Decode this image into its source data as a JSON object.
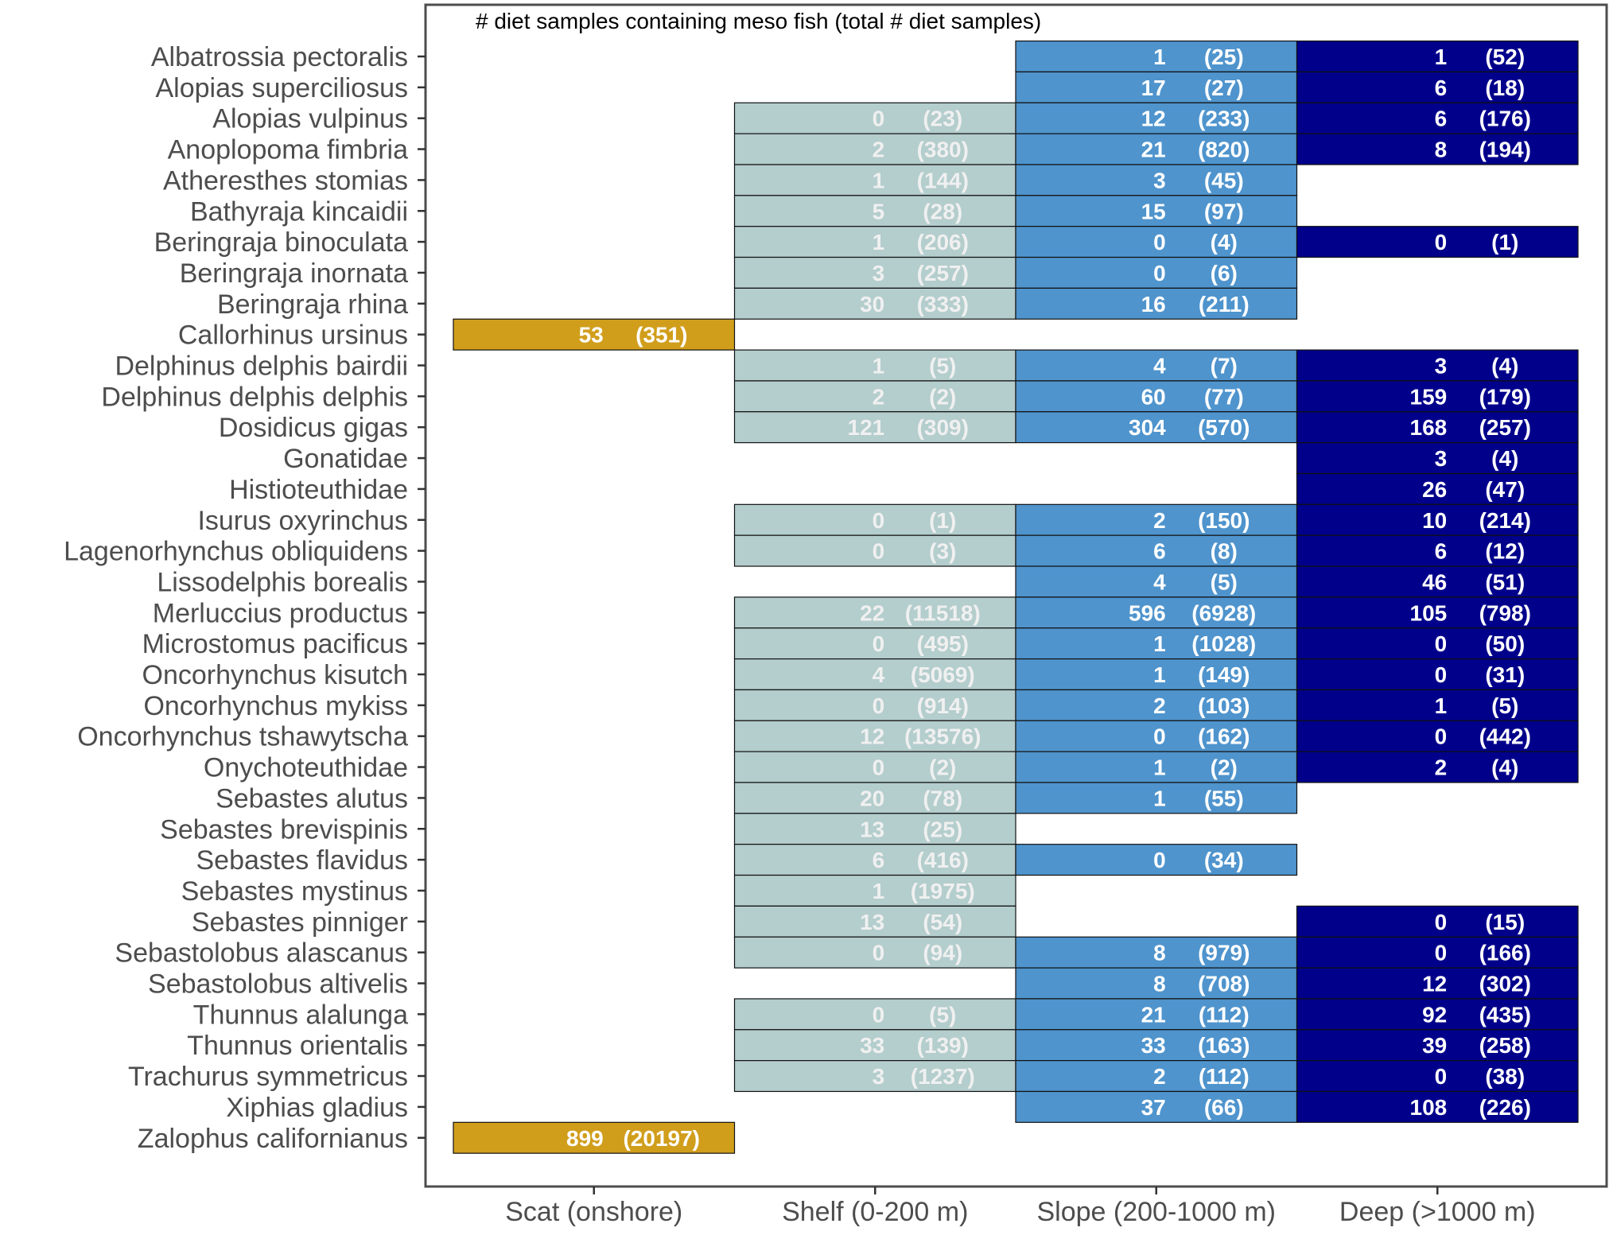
{
  "chart_data": {
    "type": "table",
    "title": "# diet samples containing meso fish (total # diet samples)",
    "columns": [
      {
        "key": "scat",
        "label": "Scat (onshore)",
        "color": "#D19E1C",
        "text_color": "#FFFFFF"
      },
      {
        "key": "shelf",
        "label": "Shelf (0-200 m)",
        "color": "#B4CDCD",
        "text_color": "#F0F0F0"
      },
      {
        "key": "slope",
        "label": "Slope (200-1000 m)",
        "color": "#4F94CD",
        "text_color": "#FFFFFF"
      },
      {
        "key": "deep",
        "label": "Deep (>1000 m)",
        "color": "#00008B",
        "text_color": "#FFFFFF"
      }
    ],
    "rows": [
      {
        "name": "Albatrossia pectoralis",
        "slope": [
          1,
          25
        ],
        "deep": [
          1,
          52
        ]
      },
      {
        "name": "Alopias superciliosus",
        "slope": [
          17,
          27
        ],
        "deep": [
          6,
          18
        ]
      },
      {
        "name": "Alopias vulpinus",
        "shelf": [
          0,
          23
        ],
        "slope": [
          12,
          233
        ],
        "deep": [
          6,
          176
        ]
      },
      {
        "name": "Anoplopoma fimbria",
        "shelf": [
          2,
          380
        ],
        "slope": [
          21,
          820
        ],
        "deep": [
          8,
          194
        ]
      },
      {
        "name": "Atheresthes stomias",
        "shelf": [
          1,
          144
        ],
        "slope": [
          3,
          45
        ]
      },
      {
        "name": "Bathyraja kincaidii",
        "shelf": [
          5,
          28
        ],
        "slope": [
          15,
          97
        ]
      },
      {
        "name": "Beringraja binoculata",
        "shelf": [
          1,
          206
        ],
        "slope": [
          0,
          4
        ],
        "deep": [
          0,
          1
        ]
      },
      {
        "name": "Beringraja inornata",
        "shelf": [
          3,
          257
        ],
        "slope": [
          0,
          6
        ]
      },
      {
        "name": "Beringraja rhina",
        "shelf": [
          30,
          333
        ],
        "slope": [
          16,
          211
        ]
      },
      {
        "name": "Callorhinus ursinus",
        "scat": [
          53,
          351
        ]
      },
      {
        "name": "Delphinus delphis bairdii",
        "shelf": [
          1,
          5
        ],
        "slope": [
          4,
          7
        ],
        "deep": [
          3,
          4
        ]
      },
      {
        "name": "Delphinus delphis delphis",
        "shelf": [
          2,
          2
        ],
        "slope": [
          60,
          77
        ],
        "deep": [
          159,
          179
        ]
      },
      {
        "name": "Dosidicus gigas",
        "shelf": [
          121,
          309
        ],
        "slope": [
          304,
          570
        ],
        "deep": [
          168,
          257
        ]
      },
      {
        "name": "Gonatidae",
        "deep": [
          3,
          4
        ]
      },
      {
        "name": "Histioteuthidae",
        "deep": [
          26,
          47
        ]
      },
      {
        "name": "Isurus oxyrinchus",
        "shelf": [
          0,
          1
        ],
        "slope": [
          2,
          150
        ],
        "deep": [
          10,
          214
        ]
      },
      {
        "name": "Lagenorhynchus obliquidens",
        "shelf": [
          0,
          3
        ],
        "slope": [
          6,
          8
        ],
        "deep": [
          6,
          12
        ]
      },
      {
        "name": "Lissodelphis borealis",
        "slope": [
          4,
          5
        ],
        "deep": [
          46,
          51
        ]
      },
      {
        "name": "Merluccius productus",
        "shelf": [
          22,
          11518
        ],
        "slope": [
          596,
          6928
        ],
        "deep": [
          105,
          798
        ]
      },
      {
        "name": "Microstomus pacificus",
        "shelf": [
          0,
          495
        ],
        "slope": [
          1,
          1028
        ],
        "deep": [
          0,
          50
        ]
      },
      {
        "name": "Oncorhynchus kisutch",
        "shelf": [
          4,
          5069
        ],
        "slope": [
          1,
          149
        ],
        "deep": [
          0,
          31
        ]
      },
      {
        "name": "Oncorhynchus mykiss",
        "shelf": [
          0,
          914
        ],
        "slope": [
          2,
          103
        ],
        "deep": [
          1,
          5
        ]
      },
      {
        "name": "Oncorhynchus tshawytscha",
        "shelf": [
          12,
          13576
        ],
        "slope": [
          0,
          162
        ],
        "deep": [
          0,
          442
        ]
      },
      {
        "name": "Onychoteuthidae",
        "shelf": [
          0,
          2
        ],
        "slope": [
          1,
          2
        ],
        "deep": [
          2,
          4
        ]
      },
      {
        "name": "Sebastes alutus",
        "shelf": [
          20,
          78
        ],
        "slope": [
          1,
          55
        ]
      },
      {
        "name": "Sebastes brevispinis",
        "shelf": [
          13,
          25
        ]
      },
      {
        "name": "Sebastes flavidus",
        "shelf": [
          6,
          416
        ],
        "slope": [
          0,
          34
        ]
      },
      {
        "name": "Sebastes mystinus",
        "shelf": [
          1,
          1975
        ]
      },
      {
        "name": "Sebastes pinniger",
        "shelf": [
          13,
          54
        ],
        "deep": [
          0,
          15
        ]
      },
      {
        "name": "Sebastolobus alascanus",
        "shelf": [
          0,
          94
        ],
        "slope": [
          8,
          979
        ],
        "deep": [
          0,
          166
        ]
      },
      {
        "name": "Sebastolobus altivelis",
        "slope": [
          8,
          708
        ],
        "deep": [
          12,
          302
        ]
      },
      {
        "name": "Thunnus alalunga",
        "shelf": [
          0,
          5
        ],
        "slope": [
          21,
          112
        ],
        "deep": [
          92,
          435
        ]
      },
      {
        "name": "Thunnus orientalis",
        "shelf": [
          33,
          139
        ],
        "slope": [
          33,
          163
        ],
        "deep": [
          39,
          258
        ]
      },
      {
        "name": "Trachurus symmetricus",
        "shelf": [
          3,
          1237
        ],
        "slope": [
          2,
          112
        ],
        "deep": [
          0,
          38
        ]
      },
      {
        "name": "Xiphias gladius",
        "slope": [
          37,
          66
        ],
        "deep": [
          108,
          226
        ]
      },
      {
        "name": "Zalophus californianus",
        "scat": [
          899,
          20197
        ]
      }
    ]
  }
}
